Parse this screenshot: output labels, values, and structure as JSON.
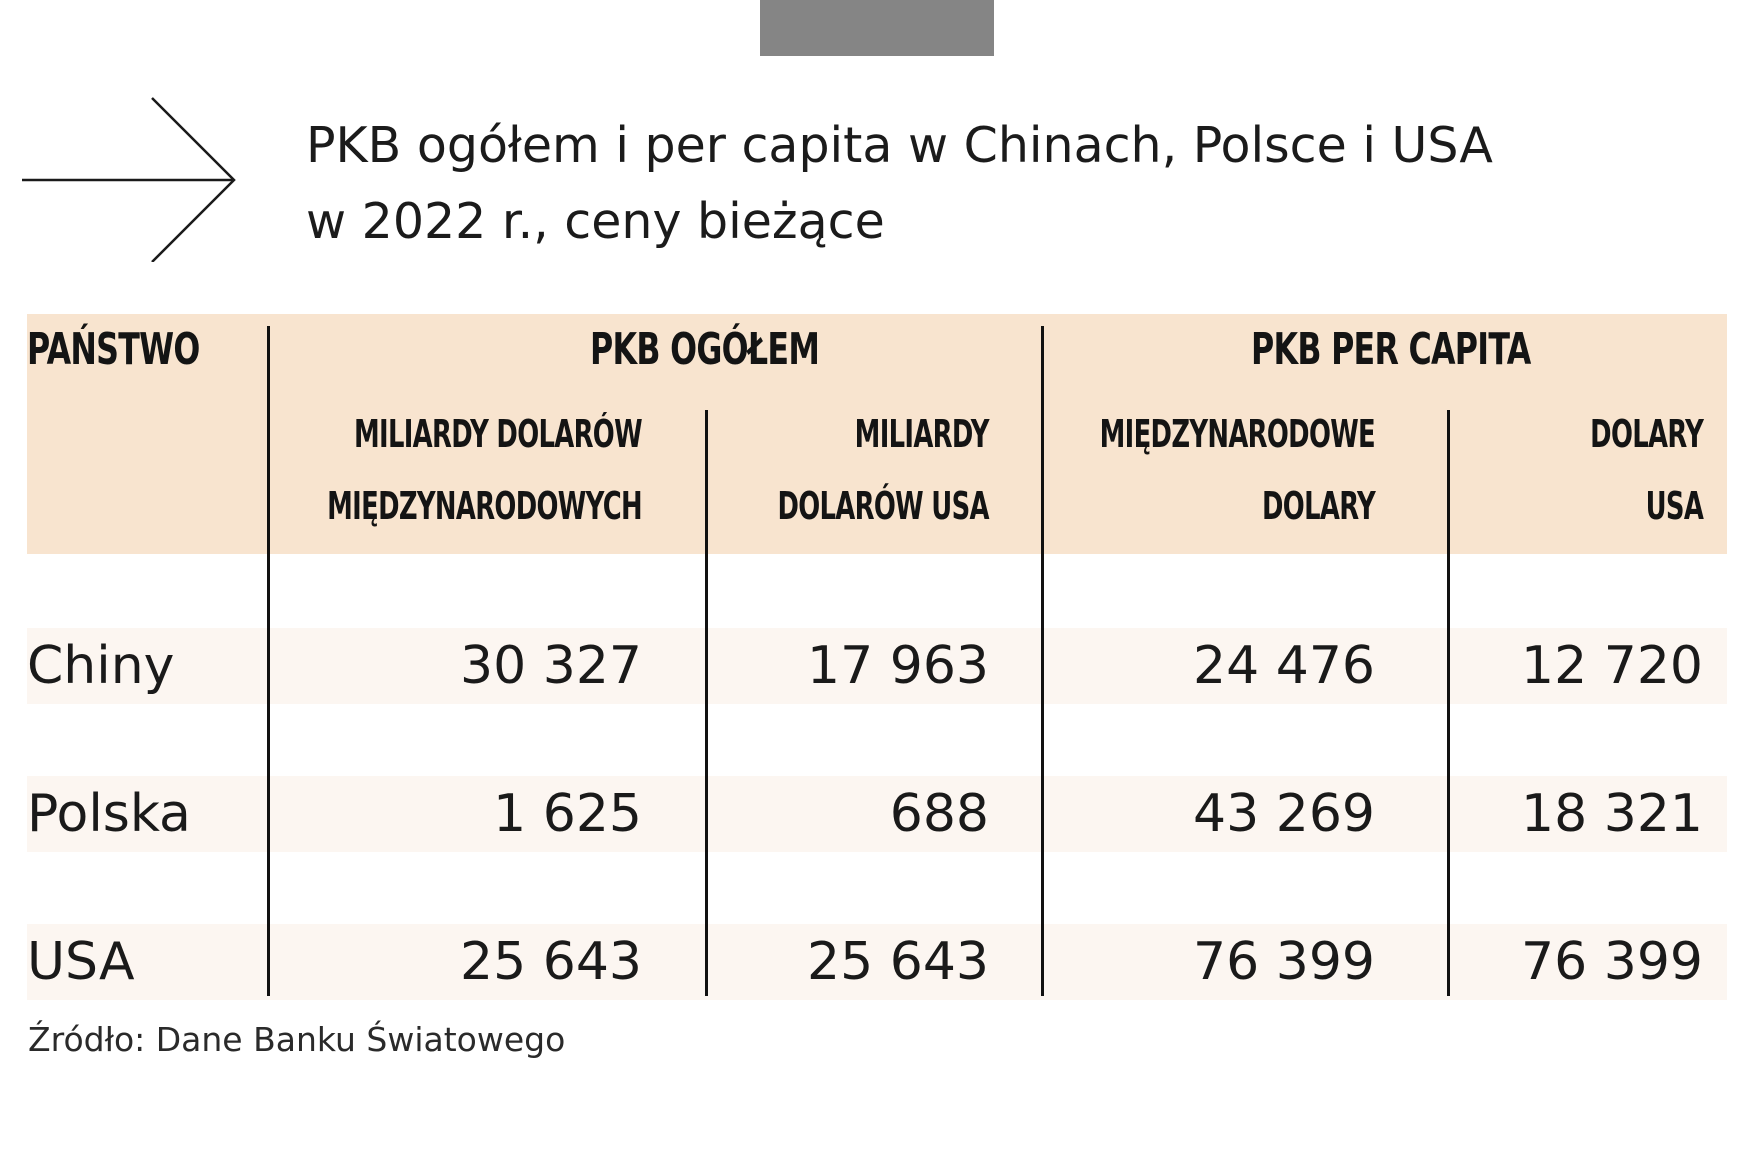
{
  "title": {
    "line1": "PKB ogółem i per capita w Chinach, Polsce i USA",
    "line2": "w 2022 r., ceny bieżące"
  },
  "icons": {
    "arrow": "arrow-right-icon"
  },
  "colors": {
    "header_band": "#f8e4cf",
    "row_band": "#fcf6f1",
    "top_bar": "#858585"
  },
  "table": {
    "col_country": "PAŃSTWO",
    "group_total": "PKB  OGÓŁEM",
    "group_percap": "PKB PER CAPITA",
    "sub": {
      "c1_l1": "MILIARDY DOLARÓW",
      "c1_l2": "MIĘDZYNARODOWYCH",
      "c2_l1": "MILIARDY",
      "c2_l2": "DOLARÓW  USA",
      "c3_l1": "MIĘDZYNARODOWE",
      "c3_l2": "DOLARY",
      "c4_l1": "DOLARY",
      "c4_l2": "USA"
    },
    "rows": [
      {
        "country": "Chiny",
        "v1": "30 327",
        "v2": "17 963",
        "v3": "24 476",
        "v4": "12 720"
      },
      {
        "country": "Polska",
        "v1": "1 625",
        "v2": "688",
        "v3": "43 269",
        "v4": "18 321"
      },
      {
        "country": "USA",
        "v1": "25 643",
        "v2": "25 643",
        "v3": "76 399",
        "v4": "76 399"
      }
    ]
  },
  "source": "Źródło: Dane Banku Światowego",
  "chart_data": {
    "type": "table",
    "title": "PKB ogółem i per capita w Chinach, Polsce i USA w 2022 r., ceny bieżące",
    "columns": [
      "PAŃSTWO",
      "PKB OGÓŁEM – MILIARDY DOLARÓW MIĘDZYNARODOWYCH",
      "PKB OGÓŁEM – MILIARDY DOLARÓW USA",
      "PKB PER CAPITA – MIĘDZYNARODOWE DOLARY",
      "PKB PER CAPITA – DOLARY USA"
    ],
    "categories": [
      "Chiny",
      "Polska",
      "USA"
    ],
    "series": [
      {
        "name": "MILIARDY DOLARÓW MIĘDZYNARODOWYCH",
        "values": [
          30327,
          1625,
          25643
        ]
      },
      {
        "name": "MILIARDY DOLARÓW USA",
        "values": [
          17963,
          688,
          25643
        ]
      },
      {
        "name": "MIĘDZYNARODOWE DOLARY",
        "values": [
          24476,
          43269,
          76399
        ]
      },
      {
        "name": "DOLARY USA",
        "values": [
          12720,
          18321,
          76399
        ]
      }
    ]
  }
}
